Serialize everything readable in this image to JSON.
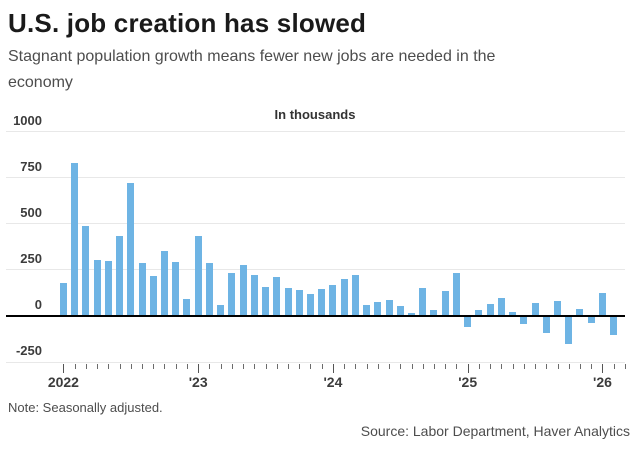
{
  "chart_data": {
    "type": "bar",
    "title": "U.S. job creation has slowed",
    "subtitle": "Stagnant population growth means fewer new jobs are needed in the economy",
    "units_label": "In thousands",
    "note": "Note: Seasonally adjusted.",
    "source": "Source: Labor Department, Haver Analytics",
    "ylim": [
      -250,
      1000
    ],
    "y_ticks": [
      1000,
      750,
      500,
      250,
      0,
      -250
    ],
    "x_tick_years": [
      "2022",
      "'23",
      "'24",
      "'25",
      "'26"
    ],
    "x_minor_tick_interval": "month",
    "grid": "horizontal",
    "legend_position": "none",
    "bar_color": "#6eb4e4",
    "categories": [
      "Jan 2022",
      "Feb 2022",
      "Mar 2022",
      "Apr 2022",
      "May 2022",
      "Jun 2022",
      "Jul 2022",
      "Aug 2022",
      "Sep 2022",
      "Oct 2022",
      "Nov 2022",
      "Dec 2022",
      "Jan 2023",
      "Feb 2023",
      "Mar 2023",
      "Apr 2023",
      "May 2023",
      "Jun 2023",
      "Jul 2023",
      "Aug 2023",
      "Sep 2023",
      "Oct 2023",
      "Nov 2023",
      "Dec 2023",
      "Jan 2024",
      "Feb 2024",
      "Mar 2024",
      "Apr 2024",
      "May 2024",
      "Jun 2024",
      "Jul 2024",
      "Aug 2024",
      "Sep 2024",
      "Oct 2024",
      "Nov 2024",
      "Dec 2024",
      "Jan 2025",
      "Feb 2025",
      "Mar 2025",
      "Apr 2025",
      "May 2025",
      "Jun 2025",
      "Jul 2025",
      "Aug 2025",
      "Sep 2025",
      "Oct 2025",
      "Nov 2025",
      "Dec 2025",
      "Jan 2026",
      "Feb 2026"
    ],
    "values": [
      180,
      830,
      490,
      305,
      300,
      435,
      720,
      290,
      215,
      350,
      295,
      90,
      435,
      290,
      60,
      235,
      275,
      220,
      155,
      210,
      150,
      140,
      120,
      145,
      170,
      200,
      225,
      60,
      75,
      85,
      55,
      15,
      150,
      35,
      135,
      235,
      -55,
      35,
      65,
      100,
      20,
      -40,
      70,
      -85,
      80,
      -145,
      40,
      -30,
      125,
      -95
    ]
  }
}
